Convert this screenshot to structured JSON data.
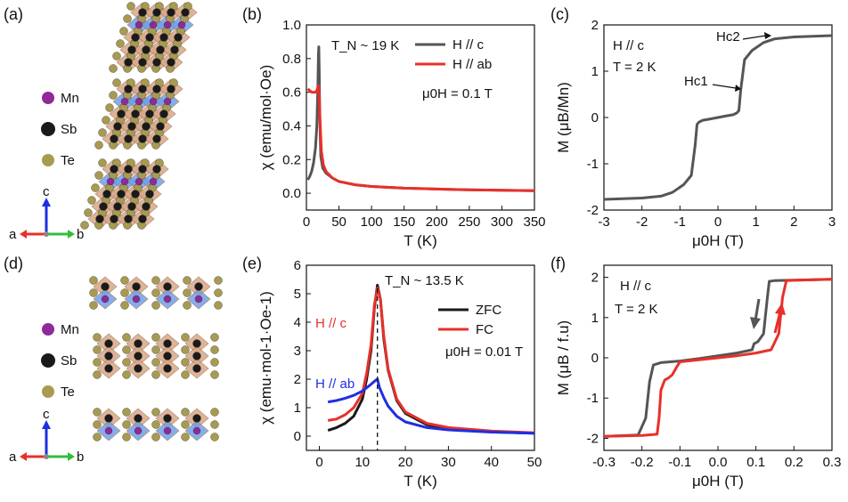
{
  "panels": {
    "a": {
      "label": "(a)",
      "legend": [
        "Mn",
        "Sb",
        "Te"
      ],
      "axes": {
        "c": "c",
        "a": "a",
        "b": "b"
      }
    },
    "d": {
      "label": "(d)",
      "legend": [
        "Mn",
        "Sb",
        "Te"
      ],
      "axes": {
        "c": "c",
        "a": "a",
        "b": "b"
      }
    }
  },
  "colors": {
    "mn": "#8e2a9a",
    "sb": "#1a1a1a",
    "te": "#a89a50",
    "black_series": "#555555",
    "red_series": "#e8302a",
    "blue_series": "#1f2fe0"
  },
  "chart_data": [
    {
      "panel": "(b)",
      "type": "line",
      "xlabel": "T (K)",
      "ylabel": "χ (emu/mol·Oe)",
      "xlim": [
        0,
        350
      ],
      "ylim": [
        -0.1,
        1.0
      ],
      "xticks": [
        0,
        50,
        100,
        150,
        200,
        250,
        300,
        350
      ],
      "yticks": [
        0.0,
        0.2,
        0.4,
        0.6,
        0.8,
        1.0
      ],
      "annotations": [
        "T_N ~ 19 K",
        "μ0H = 0.1 T"
      ],
      "series": [
        {
          "name": "H // c",
          "color": "#555555",
          "x": [
            2,
            5,
            8,
            11,
            14,
            16,
            17.5,
            18.5,
            19,
            19.5,
            20.5,
            22,
            25,
            30,
            40,
            50,
            75,
            100,
            150,
            200,
            250,
            300,
            350
          ],
          "y": [
            0.08,
            0.1,
            0.13,
            0.18,
            0.27,
            0.4,
            0.62,
            0.82,
            0.87,
            0.75,
            0.45,
            0.22,
            0.15,
            0.12,
            0.09,
            0.07,
            0.05,
            0.04,
            0.03,
            0.025,
            0.02,
            0.018,
            0.015
          ]
        },
        {
          "name": "H // ab",
          "color": "#e8302a",
          "x": [
            2,
            5,
            8,
            11,
            14,
            16,
            17.5,
            18.5,
            19.5,
            21,
            23,
            26,
            30,
            40,
            50,
            75,
            100,
            150,
            200,
            250,
            300,
            350
          ],
          "y": [
            0.62,
            0.61,
            0.6,
            0.6,
            0.6,
            0.61,
            0.63,
            0.64,
            0.58,
            0.42,
            0.25,
            0.17,
            0.13,
            0.09,
            0.07,
            0.05,
            0.04,
            0.03,
            0.025,
            0.02,
            0.018,
            0.015
          ]
        }
      ]
    },
    {
      "panel": "(c)",
      "type": "line",
      "xlabel": "μ0H (T)",
      "ylabel": "M (μB/Mn)",
      "xlim": [
        -3,
        3
      ],
      "ylim": [
        -2,
        2
      ],
      "xticks": [
        -3,
        -2,
        -1,
        0,
        1,
        2,
        3
      ],
      "yticks": [
        -2,
        -1,
        0,
        1,
        2
      ],
      "annotations": [
        "H // c",
        "T = 2 K",
        "Hc1",
        "Hc2"
      ],
      "series": [
        {
          "name": "",
          "color": "#555555",
          "x": [
            -3,
            -2,
            -1.5,
            -1.2,
            -0.9,
            -0.7,
            -0.6,
            -0.55,
            -0.5,
            -0.4,
            -0.2,
            0,
            0.2,
            0.4,
            0.5,
            0.55,
            0.6,
            0.7,
            0.9,
            1.2,
            1.5,
            2,
            3
          ],
          "y": [
            -1.77,
            -1.74,
            -1.7,
            -1.62,
            -1.45,
            -1.25,
            -0.6,
            -0.15,
            -0.1,
            -0.06,
            -0.03,
            0,
            0.03,
            0.06,
            0.1,
            0.15,
            0.6,
            1.25,
            1.45,
            1.62,
            1.7,
            1.74,
            1.77
          ]
        }
      ]
    },
    {
      "panel": "(e)",
      "type": "line",
      "xlabel": "T (K)",
      "ylabel": "χ (emu·mol-1·Oe-1)",
      "xlim": [
        -3,
        50
      ],
      "ylim": [
        -0.5,
        6
      ],
      "xticks": [
        0,
        10,
        20,
        30,
        40,
        50
      ],
      "yticks": [
        0,
        1,
        2,
        3,
        4,
        5,
        6
      ],
      "annotations": [
        "T_N ~ 13.5 K",
        "μ0H = 0.01 T",
        "H // c",
        "H // ab"
      ],
      "legend": [
        "ZFC",
        "FC"
      ],
      "series": [
        {
          "name": "ZFC",
          "color": "#1a1a1a",
          "x": [
            2,
            4,
            6,
            8,
            10,
            11,
            12,
            12.8,
            13.5,
            14.2,
            15,
            16,
            18,
            20,
            25,
            30,
            40,
            50
          ],
          "y": [
            0.2,
            0.3,
            0.45,
            0.7,
            1.3,
            2.0,
            3.0,
            4.5,
            5.3,
            4.8,
            3.4,
            2.3,
            1.25,
            0.8,
            0.4,
            0.25,
            0.15,
            0.1
          ]
        },
        {
          "name": "FC",
          "color": "#e8302a",
          "x": [
            2,
            4,
            6,
            8,
            10,
            11,
            12,
            12.8,
            13.5,
            14.2,
            15,
            16,
            18,
            20,
            25,
            30,
            40,
            50
          ],
          "y": [
            0.55,
            0.6,
            0.75,
            1.0,
            1.5,
            2.2,
            3.2,
            4.6,
            5.2,
            4.8,
            3.5,
            2.35,
            1.3,
            0.85,
            0.45,
            0.3,
            0.18,
            0.12
          ]
        },
        {
          "name": "H // ab",
          "color": "#1f2fe0",
          "x": [
            2,
            4,
            6,
            8,
            10,
            12,
            13,
            13.5,
            14,
            15,
            16,
            18,
            20,
            25,
            30,
            40,
            50
          ],
          "y": [
            1.2,
            1.25,
            1.33,
            1.43,
            1.58,
            1.82,
            1.95,
            2.0,
            1.7,
            1.35,
            1.05,
            0.7,
            0.5,
            0.3,
            0.22,
            0.14,
            0.1
          ]
        }
      ]
    },
    {
      "panel": "(f)",
      "type": "line",
      "xlabel": "μ0H (T)",
      "ylabel": "M (μB / f.u)",
      "xlim": [
        -0.3,
        0.3
      ],
      "ylim": [
        -2.3,
        2.3
      ],
      "xticks": [
        -0.3,
        -0.2,
        -0.1,
        0.0,
        0.1,
        0.2,
        0.3
      ],
      "yticks": [
        -2,
        -1,
        0,
        1,
        2
      ],
      "annotations": [
        "H // c",
        "T = 2 K"
      ],
      "series": [
        {
          "name": "",
          "color": "#555555",
          "x": [
            0.3,
            0.2,
            0.15,
            0.135,
            0.13,
            0.12,
            0.105,
            0.095,
            0.09,
            0.05,
            0.0,
            -0.05,
            -0.1,
            -0.15,
            -0.17,
            -0.18,
            -0.19,
            -0.21,
            -0.3
          ],
          "y": [
            1.95,
            1.93,
            1.92,
            1.9,
            1.5,
            0.6,
            0.4,
            0.35,
            0.2,
            0.12,
            0.05,
            -0.02,
            -0.08,
            -0.12,
            -0.18,
            -0.6,
            -1.5,
            -1.92,
            -1.95
          ]
        },
        {
          "name": "",
          "color": "#e8302a",
          "x": [
            -0.3,
            -0.2,
            -0.16,
            -0.155,
            -0.15,
            -0.14,
            -0.13,
            -0.12,
            -0.11,
            -0.1,
            -0.05,
            0.0,
            0.05,
            0.1,
            0.14,
            0.16,
            0.17,
            0.18,
            0.3
          ],
          "y": [
            -1.95,
            -1.93,
            -1.9,
            -1.5,
            -0.8,
            -0.55,
            -0.5,
            -0.42,
            -0.25,
            -0.1,
            -0.05,
            0.0,
            0.05,
            0.12,
            0.2,
            0.6,
            1.5,
            1.92,
            1.95
          ]
        }
      ]
    }
  ]
}
